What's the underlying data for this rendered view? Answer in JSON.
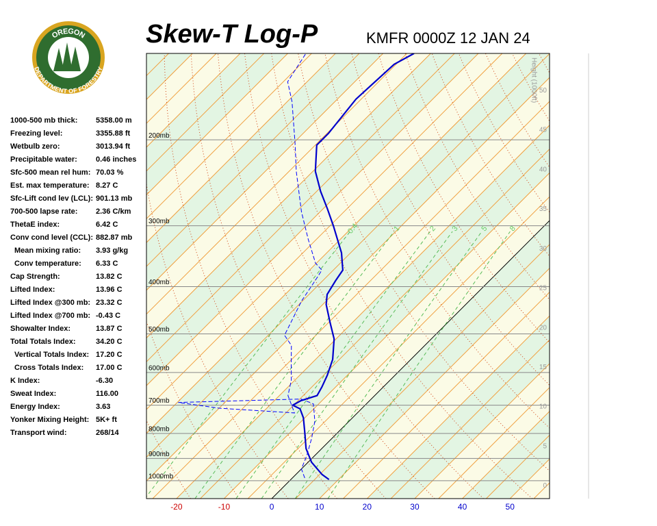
{
  "header": {
    "logo_top": "OREGON",
    "logo_bottom": "DEPARTMENT OF FORESTRY",
    "title": "Skew-T Log-P",
    "station": "KMFR 0000Z 12 JAN 24"
  },
  "indices": [
    {
      "label": "1000-500 mb thick:",
      "value": "5358.00 m"
    },
    {
      "label": "Freezing level:",
      "value": "3355.88 ft"
    },
    {
      "label": "Wetbulb zero:",
      "value": "3013.94 ft"
    },
    {
      "label": "Precipitable water:",
      "value": "0.46 inches"
    },
    {
      "label": "Sfc-500 mean rel hum:",
      "value": "70.03 %"
    },
    {
      "label": "Est. max temperature:",
      "value": "8.27 C"
    },
    {
      "label": "Sfc-Lift cond lev (LCL):",
      "value": "901.13 mb"
    },
    {
      "label": "700-500 lapse rate:",
      "value": "2.36 C/km"
    },
    {
      "label": "ThetaE index:",
      "value": "6.42 C"
    },
    {
      "label": "Conv cond level (CCL):",
      "value": "882.87 mb"
    },
    {
      "label": "Mean mixing ratio:",
      "value": "3.93 g/kg"
    },
    {
      "label": "Conv temperature:",
      "value": "6.33 C"
    },
    {
      "label": "Cap Strength:",
      "value": "13.82 C"
    },
    {
      "label": "Lifted Index:",
      "value": "13.96 C"
    },
    {
      "label": "Lifted Index @300 mb:",
      "value": "23.32 C"
    },
    {
      "label": "Lifted Index @700 mb:",
      "value": "-0.43 C"
    },
    {
      "label": "Showalter Index:",
      "value": "13.87 C"
    },
    {
      "label": "Total Totals Index:",
      "value": "34.20 C"
    },
    {
      "label": "Vertical Totals Index:",
      "value": "17.20 C"
    },
    {
      "label": "Cross Totals Index:",
      "value": "17.00 C"
    },
    {
      "label": "K Index:",
      "value": "-6.30"
    },
    {
      "label": "Sweat Index:",
      "value": "116.00"
    },
    {
      "label": "Energy Index:",
      "value": "3.63"
    },
    {
      "label": "Yonker Mixing Height:",
      "value": "5K+ ft"
    },
    {
      "label": "Transport wind:",
      "value": "268/14"
    }
  ],
  "chart_data": {
    "type": "skewt",
    "xlim": [
      -26.3,
      58.3
    ],
    "xticks": [
      -20,
      -10,
      0,
      10,
      20,
      30,
      40,
      50
    ],
    "ylim": [
      1088,
      133
    ],
    "log_y": true,
    "yticks": [
      {
        "value": 1000,
        "label": "1000mb"
      },
      {
        "value": 900,
        "label": "900mb"
      },
      {
        "value": 800,
        "label": "800mb"
      },
      {
        "value": 700,
        "label": "700mb"
      },
      {
        "value": 600,
        "label": "600mb"
      },
      {
        "value": 500,
        "label": "500mb"
      },
      {
        "value": 400,
        "label": "400mb"
      },
      {
        "value": 300,
        "label": "300mb"
      },
      {
        "value": 200,
        "label": "200mb"
      }
    ],
    "y2label": "Height (1000ft)",
    "y2lim": [
      -1.6,
      54.7
    ],
    "y2ticks": [
      0,
      5,
      10,
      15,
      20,
      25,
      30,
      35,
      40,
      45,
      50
    ],
    "mixing_ratios": [
      0.4,
      1,
      2,
      3,
      5,
      8
    ],
    "series": [
      {
        "color": "#0000cc",
        "style": "solid",
        "pressure": [
          994,
          971,
          916,
          859,
          792,
          743,
          712,
          700,
          685,
          669,
          642,
          608,
          564,
          512,
          472,
          435,
          415,
          389,
          370,
          341,
          300,
          277,
          255,
          232,
          205,
          194,
          165,
          140,
          133
        ],
        "values": [
          8.0,
          5.5,
          0.7,
          -3.3,
          -7.2,
          -10.3,
          -12.9,
          -15.2,
          -14.4,
          -12.1,
          -12.9,
          -14.2,
          -16.4,
          -20.4,
          -24.9,
          -29.3,
          -31.2,
          -32.3,
          -33.0,
          -36.9,
          -44.3,
          -49.1,
          -54.2,
          -59.5,
          -64.7,
          -64.7,
          -66.1,
          -65.4,
          -63.5
        ]
      },
      {
        "color": "#0000ff",
        "style": "dashed",
        "pressure": [
          987,
          946,
          887,
          818,
          755,
          696,
          680,
          691,
          710,
          726,
          669,
          621,
          573,
          528,
          503,
          472,
          428,
          389,
          370,
          358,
          320,
          281,
          232,
          203,
          167,
          152,
          133
        ],
        "values": [
          2.6,
          0.0,
          -1.7,
          -4.3,
          -7.2,
          -11.1,
          -14.7,
          -39.8,
          -30.0,
          -13.2,
          -18.2,
          -20.8,
          -24.4,
          -28.0,
          -31.6,
          -33.0,
          -35.2,
          -36.6,
          -37.4,
          -40.2,
          -46.7,
          -53.9,
          -63.5,
          -69.7,
          -79.0,
          -84.1,
          -86.2
        ]
      }
    ]
  }
}
